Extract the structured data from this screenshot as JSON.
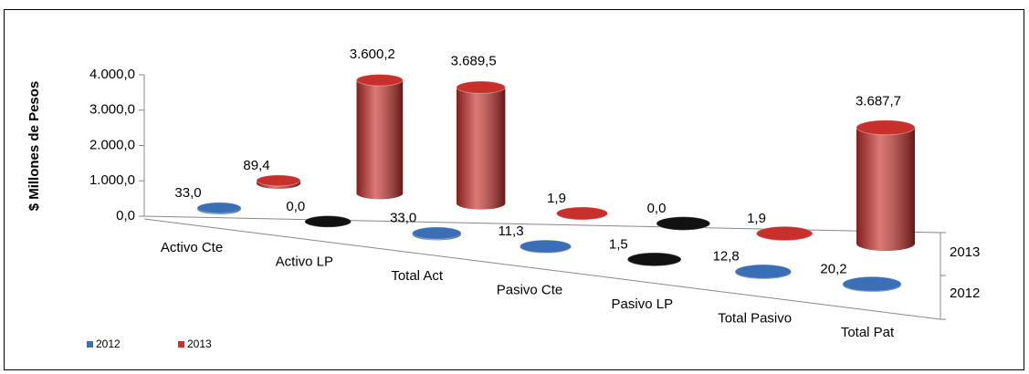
{
  "chart_data": {
    "type": "bar3d",
    "y_label": "$ Millones de Pesos",
    "categories": [
      "Activo Cte",
      "Activo LP",
      "Total Act",
      "Pasivo Cte",
      "Pasivo LP",
      "Total Pasivo",
      "Total Pat"
    ],
    "series": [
      {
        "name": "2012",
        "color": "#3a6fb5",
        "colors": [
          "#3a6fb5",
          "#111111",
          "#3a6fb5",
          "#3a6fb5",
          "#111111",
          "#3a6fb5",
          "#3a6fb5"
        ],
        "values": [
          33.0,
          0.0,
          33.0,
          11.3,
          1.5,
          12.8,
          20.2
        ],
        "value_labels": [
          "33,0",
          "0,0",
          "33,0",
          "11,3",
          "1,5",
          "12,8",
          "20,2"
        ]
      },
      {
        "name": "2013",
        "color": "#c8302c",
        "colors": [
          "#c8302c",
          "#c8302c",
          "#c8302c",
          "#c8302c",
          "#111111",
          "#c8302c",
          "#c8302c"
        ],
        "values": [
          89.4,
          3600.2,
          3689.5,
          1.9,
          0.0,
          1.9,
          3687.7
        ],
        "value_labels": [
          "89,4",
          "3.600,2",
          "3.689,5",
          "1,9",
          "0,0",
          "1,9",
          "3.687,7"
        ]
      }
    ],
    "ylim": [
      0,
      4000
    ],
    "yticks": [
      {
        "value": 0,
        "label": "0,0"
      },
      {
        "value": 1000,
        "label": "1.000,0"
      },
      {
        "value": 2000,
        "label": "2.000,0"
      },
      {
        "value": 3000,
        "label": "3.000,0"
      },
      {
        "value": 4000,
        "label": "4.000,0"
      }
    ],
    "legend": "bottom-left"
  }
}
